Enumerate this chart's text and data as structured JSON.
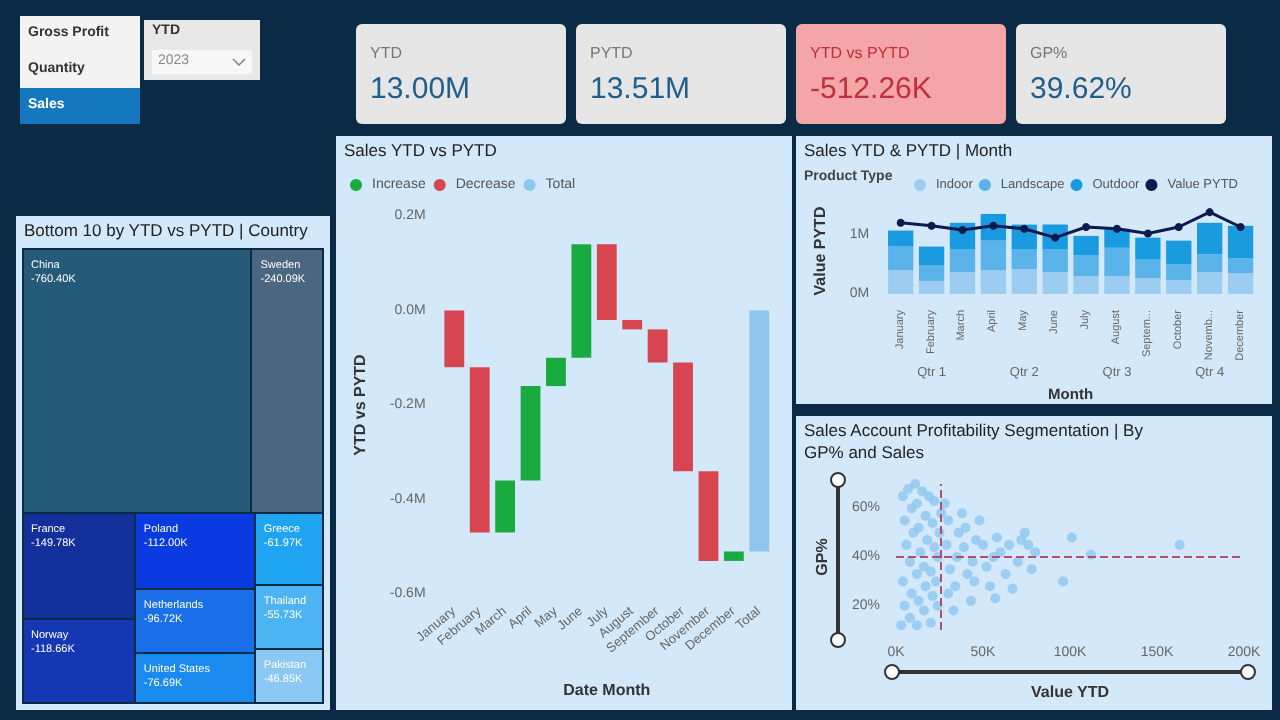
{
  "chart_data": [
    {
      "type": "other",
      "categories": [
        "Gross Profit",
        "Quantity",
        "Sales"
      ],
      "colors": [
        "#f3f3f3",
        "#f3f3f3",
        "#1577bd"
      ],
      "annotations": [
        "YTD",
        "2023"
      ]
    },
    {
      "type": "other",
      "categories": [
        "YTD",
        "PYTD",
        "YTD vs PYTD",
        "GP%"
      ],
      "value_labels": [
        "13.00M",
        "13.51M",
        "-512.26K",
        "39.62%"
      ],
      "colors": [
        "#e6e6e6",
        "#e6e6e6",
        "#f4a5a8",
        "#e6e6e6"
      ]
    },
    {
      "type": "other",
      "title": "Bottom 10 by YTD vs PYTD | Country",
      "categories": [
        "China",
        "Sweden",
        "France",
        "Norway",
        "Poland",
        "Netherlands",
        "United States",
        "Greece",
        "Thailand",
        "Pakistan"
      ],
      "values": [
        -760.4,
        -240.09,
        -149.78,
        -118.66,
        -112.0,
        -96.72,
        -76.69,
        -61.97,
        -55.73,
        -46.85
      ],
      "value_labels": [
        "-760.40K",
        "-240.09K",
        "-149.78K",
        "-118.66K",
        "-112.00K",
        "-96.72K",
        "-76.69K",
        "-61.97K",
        "-55.73K",
        "-46.85K"
      ],
      "colors": [
        "#255a78",
        "#4a6680",
        "#13309a",
        "#1438b4",
        "#0a3be0",
        "#1a6fe8",
        "#1a8aee",
        "#1ea4f0",
        "#4cb4f2",
        "#8cc8f4"
      ]
    },
    {
      "type": "bar",
      "title": "Sales YTD vs PYTD",
      "xlabel": "Date Month",
      "ylabel": "YTD vs PYTD",
      "legend": "top left",
      "categories": [
        "January",
        "February",
        "March",
        "April",
        "May",
        "June",
        "July",
        "August",
        "September",
        "October",
        "November",
        "December",
        "Total"
      ],
      "series": [
        {
          "name": "Increase",
          "color": "#1aab40",
          "base": [
            null,
            null,
            -0.47,
            -0.36,
            -0.16,
            -0.1,
            null,
            null,
            null,
            null,
            null,
            -0.53,
            null
          ],
          "values": [
            null,
            null,
            0.11,
            0.2,
            0.06,
            0.24,
            null,
            null,
            null,
            null,
            null,
            0.02,
            null
          ]
        },
        {
          "name": "Decrease",
          "color": "#d64550",
          "base": [
            0,
            -0.12,
            null,
            null,
            null,
            null,
            0.14,
            -0.02,
            -0.04,
            -0.11,
            -0.34,
            null,
            null
          ],
          "values": [
            -0.12,
            -0.35,
            null,
            null,
            null,
            null,
            -0.16,
            -0.02,
            -0.07,
            -0.23,
            -0.19,
            null,
            null
          ]
        },
        {
          "name": "Total",
          "color": "#8ec6f0",
          "base": [
            null,
            null,
            null,
            null,
            null,
            null,
            null,
            null,
            null,
            null,
            null,
            null,
            0
          ],
          "values": [
            null,
            null,
            null,
            null,
            null,
            null,
            null,
            null,
            null,
            null,
            null,
            null,
            -0.51
          ]
        }
      ],
      "ylim": [
        -0.6,
        0.2
      ],
      "yticks": [
        {
          "value": -0.6,
          "label": "-0.6M"
        },
        {
          "value": -0.4,
          "label": "-0.4M"
        },
        {
          "value": -0.2,
          "label": "-0.2M"
        },
        {
          "value": 0,
          "label": "0.0M"
        },
        {
          "value": 0.2,
          "label": "0.2M"
        }
      ],
      "grid": false
    },
    {
      "type": "bar",
      "title": "Sales YTD & PYTD | Month",
      "legend_title": "Product Type",
      "legend": "top left",
      "xlabel": "Month",
      "ylabel": "Value PYTD",
      "stacked": true,
      "marker": "circle",
      "categories": [
        "January",
        "February",
        "March",
        "April",
        "May",
        "June",
        "July",
        "August",
        "Septem...",
        "October",
        "Novemb...",
        "December"
      ],
      "annotations": [
        "Qtr 1",
        "Qtr 2",
        "Qtr 3",
        "Qtr 4"
      ],
      "series": [
        {
          "name": "Indoor",
          "color": "#9ccdf0",
          "values": [
            0.4,
            0.22,
            0.37,
            0.4,
            0.42,
            0.37,
            0.3,
            0.3,
            0.27,
            0.23,
            0.37,
            0.35
          ]
        },
        {
          "name": "Landscape",
          "color": "#5ab4ea",
          "values": [
            0.4,
            0.26,
            0.38,
            0.5,
            0.33,
            0.38,
            0.35,
            0.48,
            0.31,
            0.27,
            0.3,
            0.25
          ]
        },
        {
          "name": "Outdoor",
          "color": "#1a9be0",
          "values": [
            0.27,
            0.32,
            0.45,
            0.45,
            0.42,
            0.42,
            0.33,
            0.32,
            0.37,
            0.4,
            0.53,
            0.55
          ]
        },
        {
          "name": "Value PYTD",
          "type": "line",
          "color": "#0d1a4f",
          "values": [
            1.2,
            1.15,
            1.08,
            1.15,
            1.1,
            0.95,
            1.13,
            1.1,
            1.02,
            1.13,
            1.38,
            1.13
          ]
        }
      ],
      "ylim": [
        0,
        1.45
      ],
      "yticks": [
        {
          "value": 0,
          "label": "0M"
        },
        {
          "value": 1,
          "label": "1M"
        }
      ],
      "grid": false
    },
    {
      "type": "scatter",
      "title": "Sales Account Profitability Segmentation | By GP% and Sales",
      "xlabel": "Value YTD",
      "ylabel": "GP%",
      "marker": "circle",
      "grid": false,
      "series": [
        {
          "color": "#8ec6f0",
          "x": [
            3,
            5,
            4,
            6,
            5,
            4,
            7,
            8,
            9,
            8,
            10,
            9,
            11,
            12,
            13,
            12,
            14,
            13,
            12,
            15,
            16,
            17,
            16,
            18,
            17,
            19,
            20,
            21,
            20,
            22,
            21,
            22,
            24,
            23,
            24,
            25,
            26,
            28,
            30,
            29,
            31,
            30,
            33,
            34,
            35,
            36,
            38,
            40,
            39,
            41,
            43,
            45,
            44,
            46,
            48,
            50,
            52,
            54,
            57,
            56,
            58,
            60,
            63,
            65,
            67,
            70,
            72,
            74,
            76,
            78,
            80,
            96,
            101,
            112,
            163
          ],
          "values": [
            12,
            20,
            30,
            45,
            55,
            65,
            68,
            15,
            25,
            38,
            50,
            60,
            70,
            12,
            22,
            33,
            42,
            52,
            62,
            67,
            18,
            28,
            36,
            47,
            57,
            65,
            13,
            24,
            34,
            44,
            54,
            63,
            20,
            30,
            40,
            50,
            58,
            62,
            55,
            45,
            35,
            25,
            18,
            28,
            40,
            50,
            58,
            52,
            44,
            33,
            22,
            30,
            38,
            47,
            55,
            45,
            36,
            28,
            23,
            40,
            48,
            42,
            33,
            45,
            27,
            38,
            47,
            50,
            45,
            35,
            42,
            30,
            48,
            41,
            45
          ]
        }
      ],
      "xlim": [
        0,
        200
      ],
      "xticks": [
        {
          "value": 0,
          "label": "0K"
        },
        {
          "value": 50,
          "label": "50K"
        },
        {
          "value": 100,
          "label": "100K"
        },
        {
          "value": 150,
          "label": "150K"
        },
        {
          "value": 200,
          "label": "200K"
        }
      ],
      "ylim": [
        10,
        70
      ],
      "yticks": [
        {
          "value": 20,
          "label": "20%"
        },
        {
          "value": 40,
          "label": "40%"
        },
        {
          "value": 60,
          "label": "60%"
        }
      ],
      "ref_lines": [
        {
          "axis": "y",
          "value": 40,
          "color": "#b0506e",
          "line_style": "dashed"
        },
        {
          "axis": "x",
          "value": 25,
          "color": "#b0506e",
          "line_style": "dashed"
        }
      ]
    }
  ]
}
